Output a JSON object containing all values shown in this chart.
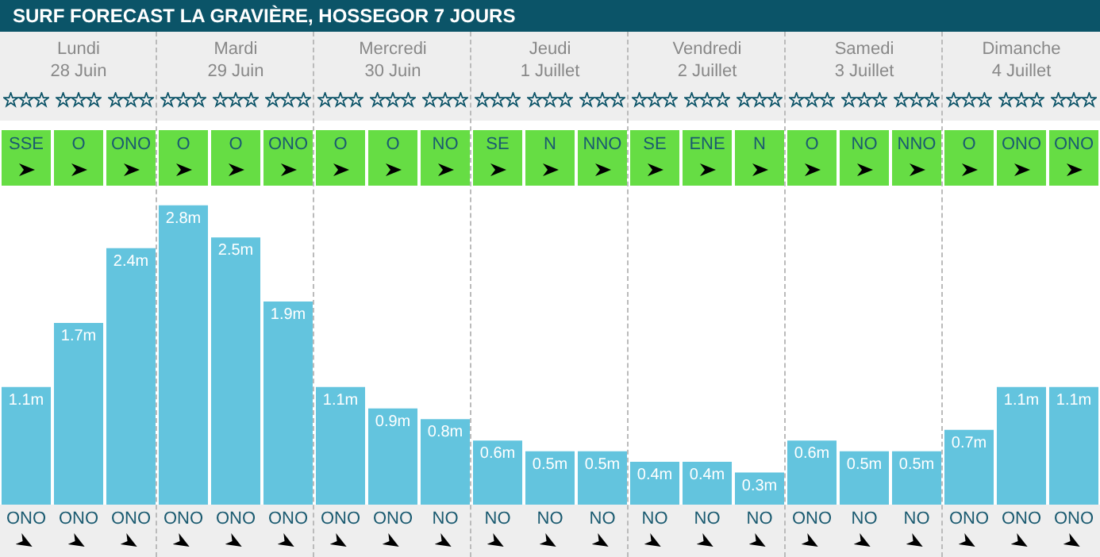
{
  "chart_data": {
    "type": "bar",
    "title": "SURF FORECAST LA GRAVIÈRE, HOSSEGOR 7 JOURS",
    "categories": [
      "ONO",
      "ONO",
      "ONO",
      "ONO",
      "ONO",
      "ONO",
      "ONO",
      "ONO",
      "NO",
      "NO",
      "NO",
      "NO",
      "NO",
      "NO",
      "NO",
      "ONO",
      "NO",
      "NO",
      "ONO",
      "ONO",
      "ONO"
    ],
    "series": [
      {
        "color": "#63c4de",
        "values": [
          1.1,
          1.7,
          2.4,
          2.8,
          2.5,
          1.9,
          1.1,
          0.9,
          0.8,
          0.6,
          0.5,
          0.5,
          0.4,
          0.4,
          0.3,
          0.6,
          0.5,
          0.5,
          0.7,
          1.1,
          1.1
        ],
        "value_labels": [
          "1.1m",
          "1.7m",
          "2.4m",
          "2.8m",
          "2.5m",
          "1.9m",
          "1.1m",
          "0.9m",
          "0.8m",
          "0.6m",
          "0.5m",
          "0.5m",
          "0.4m",
          "0.4m",
          "0.3m",
          "0.6m",
          "0.5m",
          "0.5m",
          "0.7m",
          "1.1m",
          "1.1m"
        ]
      }
    ],
    "annotations": [
      "Lundi\n28 Juin",
      "Mardi\n29 Juin",
      "Mercredi\n30 Juin",
      "Jeudi\n1 Juillet",
      "Vendredi\n2 Juillet",
      "Samedi\n3 Juillet",
      "Dimanche\n4 Juillet",
      "SSE",
      "O",
      "ONO",
      "O",
      "O",
      "ONO",
      "O",
      "O",
      "NO",
      "SE",
      "N",
      "NNO",
      "SE",
      "ENE",
      "N",
      "O",
      "NO",
      "NNO",
      "O",
      "ONO",
      "ONO"
    ]
  }
}
